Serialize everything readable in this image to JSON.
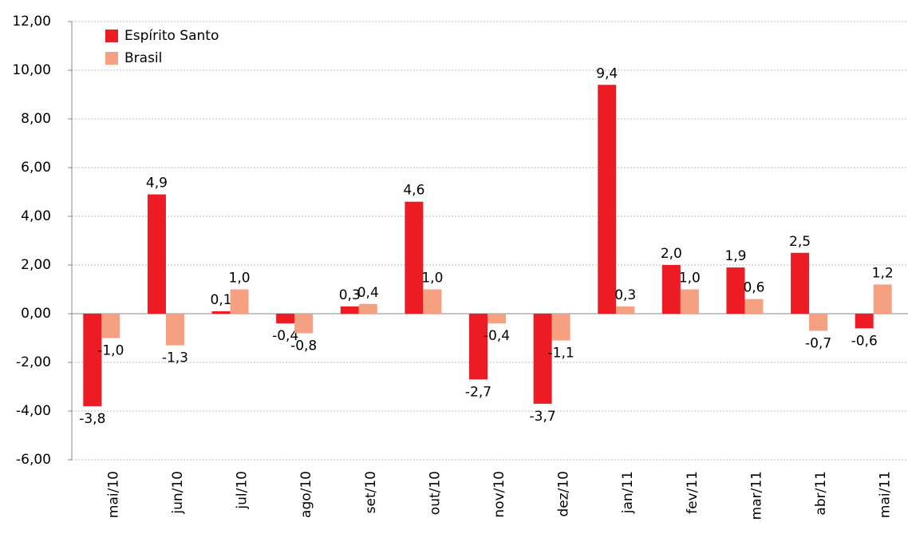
{
  "chart_data": {
    "type": "bar",
    "categories": [
      "mai/10",
      "jun/10",
      "jul/10",
      "ago/10",
      "set/10",
      "out/10",
      "nov/10",
      "dez/10",
      "jan/11",
      "fev/11",
      "mar/11",
      "abr/11",
      "mai/11"
    ],
    "series": [
      {
        "name": "Espírito Santo",
        "color": "#ed1c24",
        "values": [
          -3.8,
          4.9,
          0.1,
          -0.4,
          0.3,
          4.6,
          -2.7,
          -3.7,
          9.4,
          2.0,
          1.9,
          2.5,
          -0.6
        ],
        "value_labels": [
          "-3,8",
          "4,9",
          "0,1",
          "-0,4",
          "0,3",
          "4,6",
          "-2,7",
          "-3,7",
          "9,4",
          "2,0",
          "1,9",
          "2,5",
          "-0,6"
        ]
      },
      {
        "name": "Brasil",
        "color": "#f4a081",
        "values": [
          -1.0,
          -1.3,
          1.0,
          -0.8,
          0.4,
          1.0,
          -0.4,
          -1.1,
          0.3,
          1.0,
          0.6,
          -0.7,
          1.2
        ],
        "value_labels": [
          "-1,0",
          "-1,3",
          "1,0",
          "-0,8",
          "0,4",
          "1,0",
          "-0,4",
          "-1,1",
          "0,3",
          "1,0",
          "0,6",
          "-0,7",
          "1,2"
        ]
      }
    ],
    "ylim": [
      -6,
      12
    ],
    "yticks": [
      {
        "value": -6,
        "label": "-6,00"
      },
      {
        "value": -4,
        "label": "-4,00"
      },
      {
        "value": -2,
        "label": "-2,00"
      },
      {
        "value": 0,
        "label": "0,00"
      },
      {
        "value": 2,
        "label": "2,00"
      },
      {
        "value": 4,
        "label": "4,00"
      },
      {
        "value": 6,
        "label": "6,00"
      },
      {
        "value": 8,
        "label": "8,00"
      },
      {
        "value": 10,
        "label": "10,00"
      },
      {
        "value": 12,
        "label": "12,00"
      }
    ],
    "grid": true,
    "legend": "top-left"
  }
}
